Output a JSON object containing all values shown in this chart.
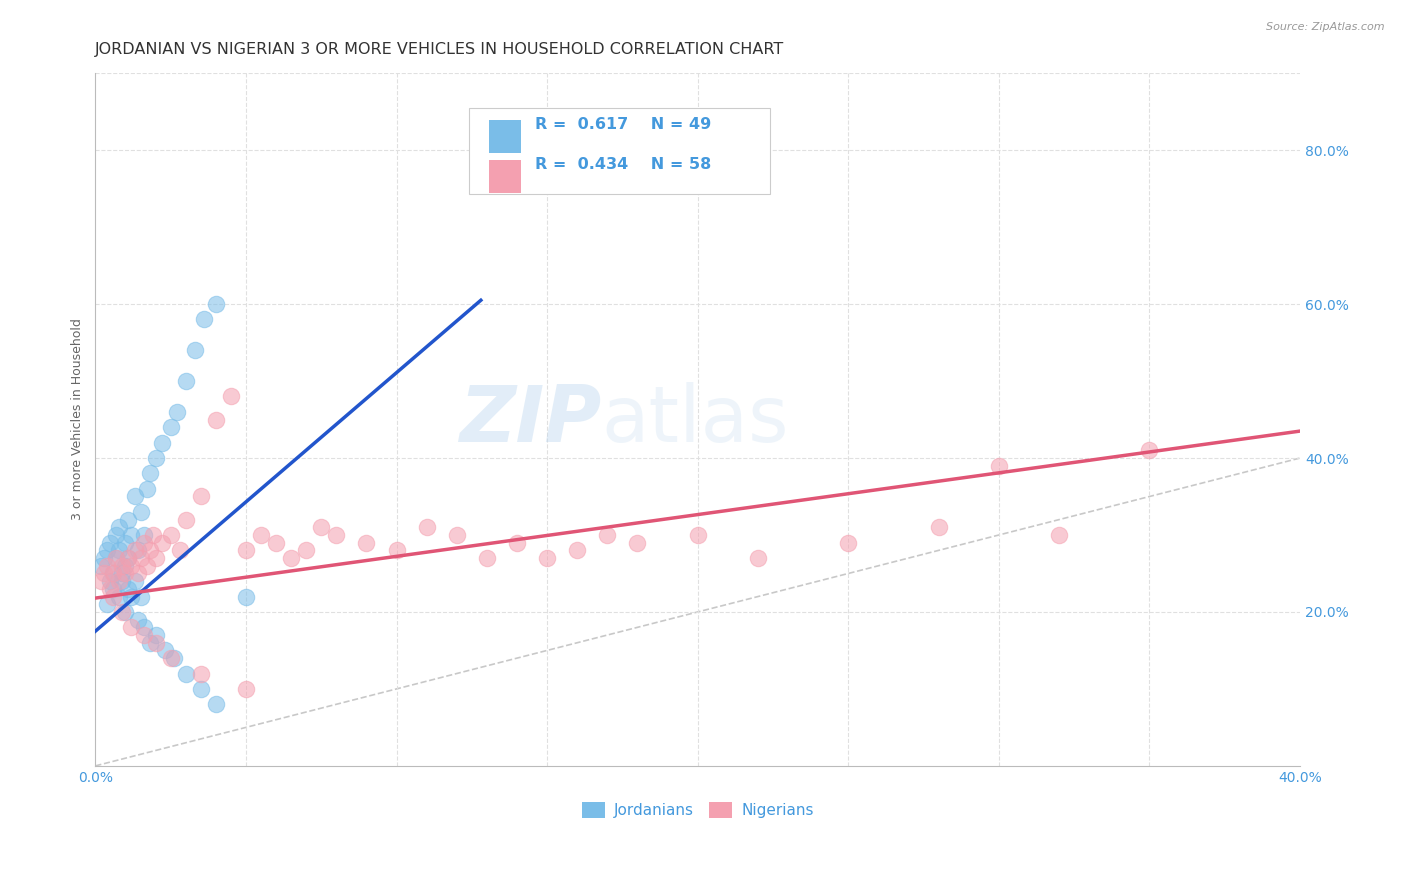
{
  "title": "JORDANIAN VS NIGERIAN 3 OR MORE VEHICLES IN HOUSEHOLD CORRELATION CHART",
  "source": "Source: ZipAtlas.com",
  "ylabel": "3 or more Vehicles in Household",
  "xlim": [
    0.0,
    0.4
  ],
  "ylim": [
    0.0,
    0.9
  ],
  "xtick_positions": [
    0.0,
    0.05,
    0.1,
    0.15,
    0.2,
    0.25,
    0.3,
    0.35,
    0.4
  ],
  "xtick_labels": [
    "0.0%",
    "",
    "",
    "",
    "",
    "",
    "",
    "",
    "40.0%"
  ],
  "yticks_right": [
    0.2,
    0.4,
    0.6,
    0.8
  ],
  "ytick_labels_right": [
    "20.0%",
    "40.0%",
    "60.0%",
    "80.0%"
  ],
  "jordanian_color": "#7abde8",
  "nigerian_color": "#f4a0b0",
  "blue_line_color": "#2255cc",
  "pink_line_color": "#e05575",
  "ref_line_color": "#bbbbbb",
  "R_jordanian": 0.617,
  "N_jordanian": 49,
  "R_nigerian": 0.434,
  "N_nigerian": 58,
  "legend_jordanians": "Jordanians",
  "legend_nigerians": "Nigerians",
  "watermark": "ZIPatlas",
  "watermark_color": "#c5dff0",
  "jordanian_x": [
    0.002,
    0.003,
    0.004,
    0.005,
    0.005,
    0.006,
    0.007,
    0.007,
    0.008,
    0.008,
    0.009,
    0.01,
    0.01,
    0.011,
    0.011,
    0.012,
    0.013,
    0.014,
    0.015,
    0.016,
    0.017,
    0.018,
    0.02,
    0.022,
    0.025,
    0.027,
    0.03,
    0.033,
    0.036,
    0.04,
    0.004,
    0.006,
    0.008,
    0.009,
    0.01,
    0.011,
    0.012,
    0.013,
    0.014,
    0.015,
    0.016,
    0.018,
    0.02,
    0.023,
    0.026,
    0.03,
    0.035,
    0.04,
    0.05
  ],
  "jordanian_y": [
    0.26,
    0.27,
    0.28,
    0.24,
    0.29,
    0.25,
    0.3,
    0.27,
    0.28,
    0.31,
    0.25,
    0.26,
    0.29,
    0.32,
    0.27,
    0.3,
    0.35,
    0.28,
    0.33,
    0.3,
    0.36,
    0.38,
    0.4,
    0.42,
    0.44,
    0.46,
    0.5,
    0.54,
    0.58,
    0.6,
    0.21,
    0.23,
    0.22,
    0.24,
    0.2,
    0.23,
    0.22,
    0.24,
    0.19,
    0.22,
    0.18,
    0.16,
    0.17,
    0.15,
    0.14,
    0.12,
    0.1,
    0.08,
    0.22
  ],
  "nigerian_x": [
    0.002,
    0.003,
    0.004,
    0.005,
    0.006,
    0.007,
    0.008,
    0.009,
    0.01,
    0.011,
    0.012,
    0.013,
    0.014,
    0.015,
    0.016,
    0.017,
    0.018,
    0.019,
    0.02,
    0.022,
    0.025,
    0.028,
    0.03,
    0.035,
    0.04,
    0.045,
    0.05,
    0.055,
    0.06,
    0.065,
    0.07,
    0.075,
    0.08,
    0.09,
    0.1,
    0.11,
    0.12,
    0.13,
    0.14,
    0.15,
    0.16,
    0.17,
    0.18,
    0.2,
    0.22,
    0.25,
    0.28,
    0.3,
    0.32,
    0.35,
    0.006,
    0.009,
    0.012,
    0.016,
    0.02,
    0.025,
    0.035,
    0.05
  ],
  "nigerian_y": [
    0.24,
    0.25,
    0.26,
    0.23,
    0.25,
    0.27,
    0.24,
    0.26,
    0.25,
    0.27,
    0.26,
    0.28,
    0.25,
    0.27,
    0.29,
    0.26,
    0.28,
    0.3,
    0.27,
    0.29,
    0.3,
    0.28,
    0.32,
    0.35,
    0.45,
    0.48,
    0.28,
    0.3,
    0.29,
    0.27,
    0.28,
    0.31,
    0.3,
    0.29,
    0.28,
    0.31,
    0.3,
    0.27,
    0.29,
    0.27,
    0.28,
    0.3,
    0.29,
    0.3,
    0.27,
    0.29,
    0.31,
    0.39,
    0.3,
    0.41,
    0.22,
    0.2,
    0.18,
    0.17,
    0.16,
    0.14,
    0.12,
    0.1
  ],
  "blue_line_x": [
    0.0,
    0.128
  ],
  "blue_line_y": [
    0.175,
    0.605
  ],
  "pink_line_x": [
    0.0,
    0.4
  ],
  "pink_line_y": [
    0.218,
    0.435
  ],
  "ref_line_x": [
    0.0,
    0.9
  ],
  "ref_line_y": [
    0.0,
    0.9
  ],
  "background_color": "#ffffff",
  "grid_color": "#e0e0e0",
  "title_color": "#333333",
  "axis_label_color": "#666666",
  "tick_color": "#4499dd",
  "title_fontsize": 11.5,
  "label_fontsize": 9,
  "tick_fontsize": 10
}
